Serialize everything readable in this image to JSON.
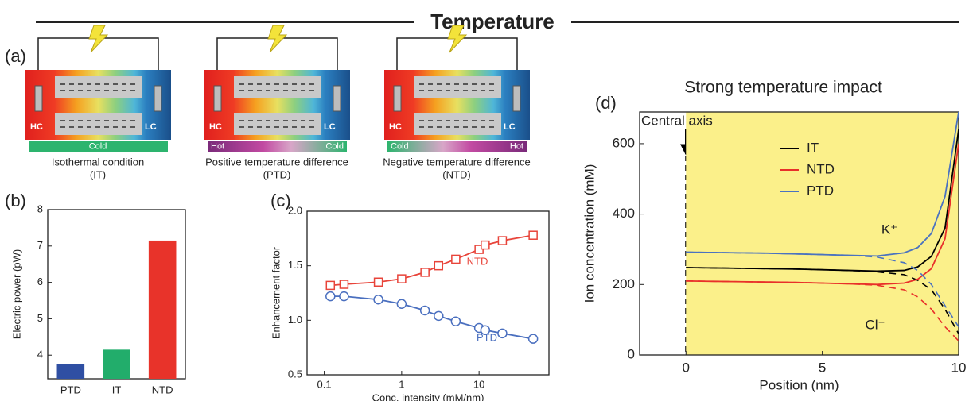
{
  "header": {
    "title": "Temperature"
  },
  "panel_labels": [
    "(a)",
    "(b)",
    "(c)",
    "(d)"
  ],
  "diagram": {
    "schematics": [
      {
        "left": "HC",
        "right": "LC",
        "bar_labels": [
          "Cold"
        ],
        "caption": [
          "Isothermal condition",
          "(IT)"
        ]
      },
      {
        "left": "HC",
        "right": "LC",
        "bar_labels": [
          "Hot",
          "Cold"
        ],
        "caption": [
          "Positive temperature difference",
          "(PTD)"
        ]
      },
      {
        "left": "HC",
        "right": "LC",
        "bar_labels": [
          "Cold",
          "Hot"
        ],
        "caption": [
          "Negative temperature difference",
          "(NTD)"
        ]
      }
    ]
  },
  "chart_data": [
    {
      "type": "bar",
      "ylabel": "Electric power (pW)",
      "categories": [
        "PTD",
        "IT",
        "NTD"
      ],
      "values": [
        3.75,
        4.15,
        7.15
      ],
      "colors": [
        "#2f4fa3",
        "#22ad6b",
        "#e8332a"
      ],
      "ylim": [
        3.35,
        8
      ],
      "yticks": [
        4,
        5,
        6,
        7,
        8
      ]
    },
    {
      "type": "line",
      "xlabel": "Conc. intensity (mM/nm)",
      "ylabel": "Enhancement factor",
      "xscale": "log",
      "x": [
        0.12,
        0.18,
        0.5,
        1,
        2,
        3,
        5,
        10,
        12,
        20,
        50
      ],
      "xlim": [
        0.06,
        80
      ],
      "xticks": [
        0.1,
        1,
        10
      ],
      "ylim": [
        0.5,
        2.0
      ],
      "yticks": [
        0.5,
        {
          "value": 1,
          "label": "1.0"
        },
        1.5,
        {
          "value": 2,
          "label": "2.0"
        }
      ],
      "series": [
        {
          "name": "NTD",
          "color": "#e8443a",
          "marker": "square",
          "values": [
            1.32,
            1.33,
            1.35,
            1.38,
            1.44,
            1.5,
            1.56,
            1.65,
            1.69,
            1.73,
            1.78
          ]
        },
        {
          "name": "PTD",
          "color": "#4a6fbf",
          "marker": "circle",
          "values": [
            1.22,
            1.22,
            1.19,
            1.15,
            1.09,
            1.04,
            0.99,
            0.93,
            0.91,
            0.88,
            0.83
          ]
        }
      ]
    },
    {
      "type": "line",
      "title": "Strong temperature impact",
      "xlabel": "Position (nm)",
      "ylabel": "Ion concentration (mM)",
      "x": [
        0,
        1,
        2,
        3,
        4,
        5,
        6,
        7,
        8,
        8.5,
        9,
        9.5,
        10
      ],
      "xlim": [
        -1.7,
        10
      ],
      "xticks": [
        0,
        5,
        10
      ],
      "ylim": [
        0,
        690
      ],
      "yticks": [
        0,
        200,
        400,
        600
      ],
      "background": "#fbf08a",
      "legend": true,
      "series": [
        {
          "name": "IT",
          "color": "#000000",
          "values": [
            248,
            247,
            246,
            245,
            244,
            242,
            240,
            238,
            240,
            250,
            280,
            360,
            640
          ],
          "cl_values": [
            248,
            247,
            246,
            245,
            244,
            242,
            240,
            236,
            228,
            212,
            185,
            130,
            60
          ]
        },
        {
          "name": "NTD",
          "color": "#e8302a",
          "values": [
            210,
            209,
            208,
            207,
            206,
            204,
            202,
            200,
            204,
            215,
            245,
            330,
            600
          ],
          "cl_values": [
            210,
            209,
            208,
            207,
            206,
            204,
            202,
            198,
            185,
            165,
            130,
            80,
            40
          ]
        },
        {
          "name": "PTD",
          "color": "#4a72c0",
          "values": [
            292,
            291,
            290,
            289,
            287,
            285,
            283,
            281,
            290,
            305,
            345,
            450,
            690
          ],
          "cl_values": [
            292,
            291,
            290,
            289,
            287,
            285,
            283,
            278,
            262,
            240,
            200,
            140,
            80
          ]
        }
      ],
      "annotations": [
        "Central axis",
        "K⁺",
        "Cl⁻"
      ]
    }
  ]
}
